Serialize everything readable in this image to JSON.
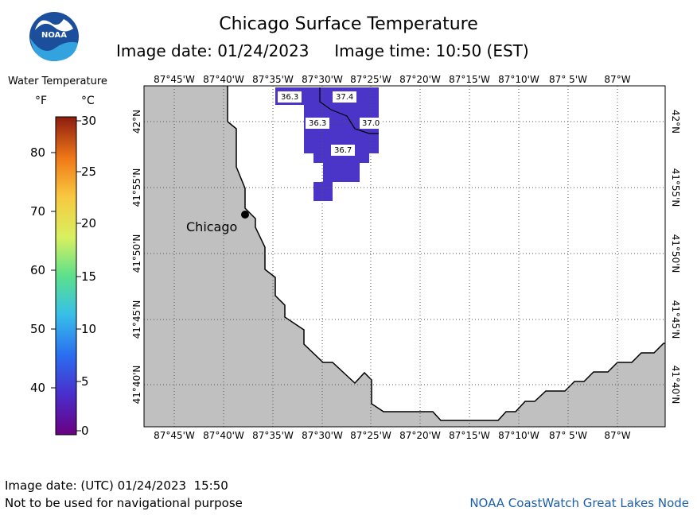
{
  "header": {
    "title": "Chicago Surface Temperature",
    "subtitle_date": "Image date: 01/24/2023",
    "subtitle_time": "Image time: 10:50 (EST)"
  },
  "logo": {
    "text": "NOAA",
    "icon": "noaa-logo-icon",
    "colors": [
      "#1b4f9c",
      "#33a3e0",
      "#ffffff"
    ]
  },
  "legend": {
    "title": "Water Temperature",
    "unit_f": "°F",
    "unit_c": "°C",
    "ticks_f": [
      "80",
      "70",
      "60",
      "50",
      "40"
    ],
    "ticks_c": [
      "30",
      "25",
      "20",
      "15",
      "10",
      "5",
      "0"
    ]
  },
  "map": {
    "lon_labels": [
      "87°45'W",
      "87°40'W",
      "87°35'W",
      "87°30'W",
      "87°25'W",
      "87°20'W",
      "87°15'W",
      "87°10'W",
      "87° 5'W",
      "87°W"
    ],
    "lat_labels": [
      "42°N",
      "41°55'N",
      "41°50'N",
      "41°45'N",
      "41°40'N"
    ],
    "city_label": "Chicago",
    "temp_labels": [
      "36.3",
      "37.4",
      "36.3",
      "37.0",
      "36.7"
    ],
    "land_color": "#c0c0c0",
    "water_color": "#ffffff",
    "pixel_color": "#4a35c8"
  },
  "footer": {
    "utc": "Image date: (UTC) 01/24/2023  15:50",
    "disclaimer": "Not to be used for navigational purpose",
    "credit": "NOAA CoastWatch Great Lakes Node"
  }
}
